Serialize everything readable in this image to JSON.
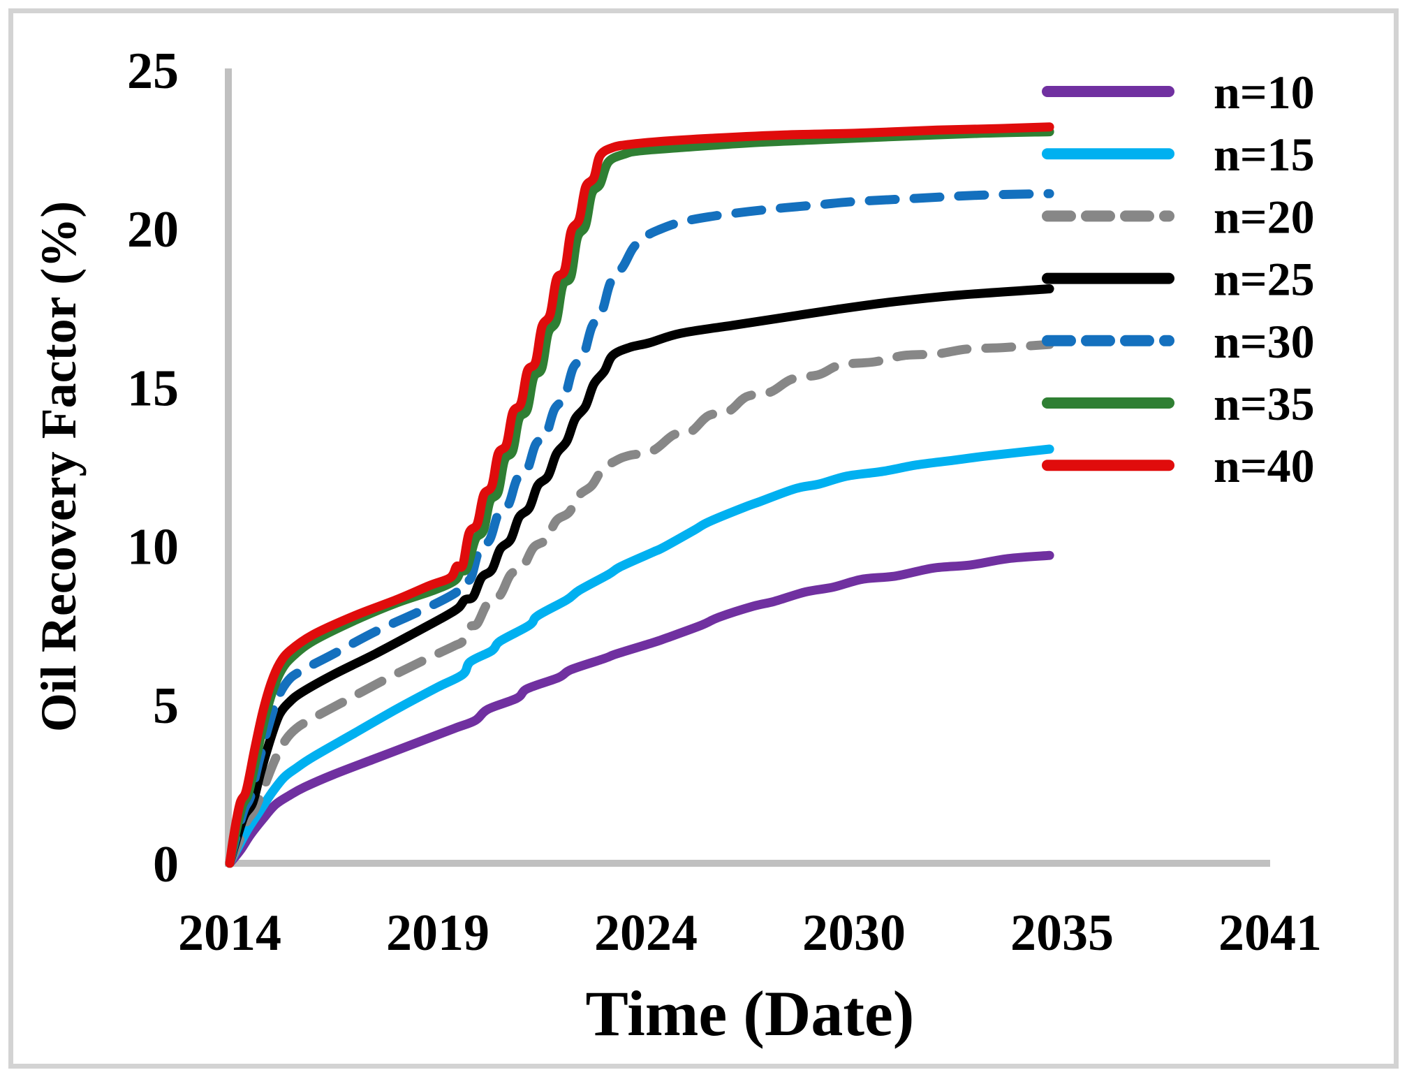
{
  "chart_data": {
    "type": "line",
    "title": "",
    "xlabel": "Time (Date)",
    "ylabel": "Oil Recovery Factor (%)",
    "x_ticks": [
      2014,
      2019,
      2024,
      2030,
      2035,
      2041
    ],
    "y_ticks": [
      0,
      5,
      10,
      15,
      20,
      25
    ],
    "xlim": [
      2014,
      2041
    ],
    "ylim": [
      0,
      25
    ],
    "grid": false,
    "legend_position": "right",
    "axis_color": "#c0c0c0",
    "series": [
      {
        "name": "n=10",
        "color": "#7030A0",
        "dash": "solid",
        "points": [
          [
            2014.0,
            0
          ],
          [
            2014.25,
            0.4
          ],
          [
            2014.5,
            0.9
          ],
          [
            2014.8,
            1.4
          ],
          [
            2015.1,
            1.85
          ],
          [
            2015.45,
            2.15
          ],
          [
            2015.8,
            2.4
          ],
          [
            2016.5,
            2.8
          ],
          [
            2017.5,
            3.3
          ],
          [
            2018.5,
            3.8
          ],
          [
            2019.4,
            4.25
          ],
          [
            2019.9,
            4.5
          ],
          [
            2020.2,
            4.85
          ],
          [
            2020.9,
            5.2
          ],
          [
            2021.15,
            5.5
          ],
          [
            2021.9,
            5.85
          ],
          [
            2022.2,
            6.1
          ],
          [
            2023.0,
            6.45
          ],
          [
            2023.3,
            6.6
          ],
          [
            2024.2,
            6.95
          ],
          [
            2024.6,
            7.1
          ],
          [
            2025.6,
            7.5
          ],
          [
            2026.1,
            7.75
          ],
          [
            2027.1,
            8.1
          ],
          [
            2027.7,
            8.25
          ],
          [
            2028.6,
            8.55
          ],
          [
            2029.4,
            8.7
          ],
          [
            2030.2,
            8.95
          ],
          [
            2031.0,
            9.05
          ],
          [
            2031.9,
            9.3
          ],
          [
            2032.8,
            9.4
          ],
          [
            2033.7,
            9.6
          ],
          [
            2034.7,
            9.7
          ]
        ]
      },
      {
        "name": "n=15",
        "color": "#00B0F0",
        "dash": "solid",
        "points": [
          [
            2014.0,
            0
          ],
          [
            2014.2,
            0.5
          ],
          [
            2014.45,
            1.1
          ],
          [
            2014.7,
            1.6
          ],
          [
            2015.0,
            2.2
          ],
          [
            2015.3,
            2.7
          ],
          [
            2015.6,
            3.0
          ],
          [
            2016.0,
            3.35
          ],
          [
            2017.0,
            4.1
          ],
          [
            2018.0,
            4.85
          ],
          [
            2019.0,
            5.55
          ],
          [
            2019.6,
            5.95
          ],
          [
            2019.78,
            6.35
          ],
          [
            2020.3,
            6.7
          ],
          [
            2020.5,
            7.0
          ],
          [
            2021.2,
            7.5
          ],
          [
            2021.4,
            7.8
          ],
          [
            2022.1,
            8.3
          ],
          [
            2022.4,
            8.6
          ],
          [
            2023.1,
            9.1
          ],
          [
            2023.4,
            9.35
          ],
          [
            2024.2,
            9.8
          ],
          [
            2024.5,
            9.95
          ],
          [
            2025.4,
            10.5
          ],
          [
            2025.8,
            10.75
          ],
          [
            2026.8,
            11.2
          ],
          [
            2027.3,
            11.4
          ],
          [
            2028.3,
            11.8
          ],
          [
            2029.0,
            11.95
          ],
          [
            2029.8,
            12.2
          ],
          [
            2030.7,
            12.35
          ],
          [
            2031.5,
            12.55
          ],
          [
            2032.4,
            12.7
          ],
          [
            2033.3,
            12.85
          ],
          [
            2034.7,
            13.05
          ]
        ]
      },
      {
        "name": "n=20",
        "color": "#878787",
        "dash": "dashed",
        "points": [
          [
            2014.0,
            0
          ],
          [
            2014.2,
            0.6
          ],
          [
            2014.4,
            1.3
          ],
          [
            2014.6,
            1.7
          ],
          [
            2014.85,
            2.5
          ],
          [
            2015.1,
            3.3
          ],
          [
            2015.35,
            3.9
          ],
          [
            2015.6,
            4.25
          ],
          [
            2015.9,
            4.5
          ],
          [
            2016.75,
            5.1
          ],
          [
            2017.75,
            5.8
          ],
          [
            2018.75,
            6.45
          ],
          [
            2019.4,
            6.85
          ],
          [
            2019.6,
            7.0
          ],
          [
            2019.78,
            7.45
          ],
          [
            2019.95,
            7.55
          ],
          [
            2020.2,
            8.2
          ],
          [
            2020.5,
            8.45
          ],
          [
            2020.75,
            9.1
          ],
          [
            2021.05,
            9.35
          ],
          [
            2021.3,
            9.95
          ],
          [
            2021.6,
            10.2
          ],
          [
            2021.85,
            10.8
          ],
          [
            2022.15,
            11.05
          ],
          [
            2022.4,
            11.6
          ],
          [
            2022.7,
            11.9
          ],
          [
            2022.95,
            12.4
          ],
          [
            2023.3,
            12.7
          ],
          [
            2023.6,
            12.85
          ],
          [
            2024.2,
            13.0
          ],
          [
            2024.8,
            13.5
          ],
          [
            2025.3,
            13.6
          ],
          [
            2025.8,
            14.1
          ],
          [
            2026.4,
            14.25
          ],
          [
            2026.9,
            14.7
          ],
          [
            2027.6,
            14.85
          ],
          [
            2028.2,
            15.25
          ],
          [
            2029.0,
            15.4
          ],
          [
            2029.6,
            15.7
          ],
          [
            2030.5,
            15.8
          ],
          [
            2031.2,
            16.0
          ],
          [
            2032.0,
            16.05
          ],
          [
            2032.7,
            16.2
          ],
          [
            2033.6,
            16.25
          ],
          [
            2034.7,
            16.35
          ]
        ]
      },
      {
        "name": "n=25",
        "color": "#000000",
        "dash": "solid",
        "points": [
          [
            2014.0,
            0
          ],
          [
            2014.15,
            0.7
          ],
          [
            2014.35,
            1.5
          ],
          [
            2014.55,
            1.9
          ],
          [
            2014.75,
            2.9
          ],
          [
            2015.0,
            4.0
          ],
          [
            2015.2,
            4.7
          ],
          [
            2015.45,
            5.1
          ],
          [
            2015.75,
            5.4
          ],
          [
            2016.5,
            5.95
          ],
          [
            2017.5,
            6.6
          ],
          [
            2018.5,
            7.3
          ],
          [
            2019.2,
            7.8
          ],
          [
            2019.5,
            8.05
          ],
          [
            2019.65,
            8.3
          ],
          [
            2019.85,
            8.4
          ],
          [
            2020.05,
            9.0
          ],
          [
            2020.3,
            9.25
          ],
          [
            2020.5,
            9.9
          ],
          [
            2020.75,
            10.2
          ],
          [
            2020.95,
            10.9
          ],
          [
            2021.2,
            11.2
          ],
          [
            2021.4,
            11.9
          ],
          [
            2021.65,
            12.2
          ],
          [
            2021.85,
            12.9
          ],
          [
            2022.1,
            13.3
          ],
          [
            2022.3,
            14.0
          ],
          [
            2022.55,
            14.4
          ],
          [
            2022.75,
            15.1
          ],
          [
            2023.0,
            15.5
          ],
          [
            2023.2,
            16.0
          ],
          [
            2023.6,
            16.25
          ],
          [
            2024.1,
            16.4
          ],
          [
            2025.0,
            16.7
          ],
          [
            2026.5,
            16.95
          ],
          [
            2028.0,
            17.2
          ],
          [
            2029.5,
            17.45
          ],
          [
            2031.0,
            17.7
          ],
          [
            2032.5,
            17.9
          ],
          [
            2034.7,
            18.1
          ]
        ]
      },
      {
        "name": "n=30",
        "color": "#1470BE",
        "dash": "dashed",
        "points": [
          [
            2014.0,
            0
          ],
          [
            2014.15,
            0.8
          ],
          [
            2014.35,
            1.7
          ],
          [
            2014.5,
            2.1
          ],
          [
            2014.7,
            3.2
          ],
          [
            2014.95,
            4.4
          ],
          [
            2015.15,
            5.2
          ],
          [
            2015.4,
            5.75
          ],
          [
            2015.7,
            6.05
          ],
          [
            2016.5,
            6.6
          ],
          [
            2017.5,
            7.3
          ],
          [
            2018.5,
            7.9
          ],
          [
            2019.2,
            8.35
          ],
          [
            2019.5,
            8.6
          ],
          [
            2019.65,
            8.9
          ],
          [
            2019.8,
            9.0
          ],
          [
            2020.0,
            9.9
          ],
          [
            2020.25,
            10.2
          ],
          [
            2020.45,
            11.0
          ],
          [
            2020.7,
            11.3
          ],
          [
            2020.9,
            12.1
          ],
          [
            2021.15,
            12.4
          ],
          [
            2021.35,
            13.2
          ],
          [
            2021.6,
            13.5
          ],
          [
            2021.8,
            14.3
          ],
          [
            2022.05,
            14.7
          ],
          [
            2022.25,
            15.6
          ],
          [
            2022.5,
            16.0
          ],
          [
            2022.7,
            16.9
          ],
          [
            2022.95,
            17.4
          ],
          [
            2023.15,
            18.3
          ],
          [
            2023.45,
            18.8
          ],
          [
            2023.7,
            19.4
          ],
          [
            2024.0,
            19.75
          ],
          [
            2024.35,
            19.95
          ],
          [
            2025.0,
            20.2
          ],
          [
            2026.0,
            20.4
          ],
          [
            2027.5,
            20.6
          ],
          [
            2029.0,
            20.75
          ],
          [
            2030.0,
            20.85
          ],
          [
            2031.5,
            20.95
          ],
          [
            2033.0,
            21.05
          ],
          [
            2034.7,
            21.1
          ]
        ]
      },
      {
        "name": "n=35",
        "color": "#2F7F33",
        "dash": "solid",
        "points": [
          [
            2014.0,
            0
          ],
          [
            2014.12,
            0.8
          ],
          [
            2014.3,
            1.8
          ],
          [
            2014.45,
            2.2
          ],
          [
            2014.65,
            3.4
          ],
          [
            2014.85,
            4.6
          ],
          [
            2015.05,
            5.5
          ],
          [
            2015.25,
            6.1
          ],
          [
            2015.5,
            6.5
          ],
          [
            2016.0,
            7.0
          ],
          [
            2017.0,
            7.65
          ],
          [
            2018.0,
            8.2
          ],
          [
            2018.9,
            8.6
          ],
          [
            2019.4,
            8.9
          ],
          [
            2019.55,
            9.2
          ],
          [
            2019.7,
            9.3
          ],
          [
            2019.9,
            10.2
          ],
          [
            2020.1,
            10.5
          ],
          [
            2020.25,
            11.4
          ],
          [
            2020.45,
            11.7
          ],
          [
            2020.6,
            12.7
          ],
          [
            2020.8,
            13.0
          ],
          [
            2020.95,
            14.0
          ],
          [
            2021.15,
            14.3
          ],
          [
            2021.3,
            15.3
          ],
          [
            2021.5,
            15.6
          ],
          [
            2021.65,
            16.7
          ],
          [
            2021.85,
            17.1
          ],
          [
            2022.0,
            18.2
          ],
          [
            2022.2,
            18.5
          ],
          [
            2022.35,
            19.7
          ],
          [
            2022.55,
            20.1
          ],
          [
            2022.7,
            21.1
          ],
          [
            2022.9,
            21.4
          ],
          [
            2023.1,
            22.1
          ],
          [
            2023.5,
            22.35
          ],
          [
            2023.85,
            22.45
          ],
          [
            2025.0,
            22.55
          ],
          [
            2027.0,
            22.7
          ],
          [
            2029.0,
            22.8
          ],
          [
            2031.0,
            22.9
          ],
          [
            2033.0,
            23.0
          ],
          [
            2034.7,
            23.05
          ]
        ]
      },
      {
        "name": "n=40",
        "color": "#E00C0C",
        "dash": "solid",
        "points": [
          [
            2014.0,
            0
          ],
          [
            2014.1,
            0.9
          ],
          [
            2014.25,
            1.9
          ],
          [
            2014.4,
            2.3
          ],
          [
            2014.6,
            3.6
          ],
          [
            2014.8,
            4.8
          ],
          [
            2015.0,
            5.7
          ],
          [
            2015.2,
            6.3
          ],
          [
            2015.45,
            6.7
          ],
          [
            2016.0,
            7.2
          ],
          [
            2017.0,
            7.8
          ],
          [
            2018.0,
            8.3
          ],
          [
            2018.8,
            8.75
          ],
          [
            2019.3,
            9.0
          ],
          [
            2019.45,
            9.35
          ],
          [
            2019.6,
            9.4
          ],
          [
            2019.75,
            10.4
          ],
          [
            2019.95,
            10.7
          ],
          [
            2020.1,
            11.6
          ],
          [
            2020.3,
            11.9
          ],
          [
            2020.45,
            12.9
          ],
          [
            2020.65,
            13.2
          ],
          [
            2020.8,
            14.2
          ],
          [
            2021.0,
            14.5
          ],
          [
            2021.15,
            15.5
          ],
          [
            2021.35,
            15.8
          ],
          [
            2021.5,
            16.9
          ],
          [
            2021.7,
            17.3
          ],
          [
            2021.85,
            18.4
          ],
          [
            2022.05,
            18.7
          ],
          [
            2022.2,
            19.9
          ],
          [
            2022.4,
            20.3
          ],
          [
            2022.55,
            21.3
          ],
          [
            2022.75,
            21.6
          ],
          [
            2022.9,
            22.3
          ],
          [
            2023.2,
            22.55
          ],
          [
            2023.6,
            22.65
          ],
          [
            2024.5,
            22.75
          ],
          [
            2026.0,
            22.85
          ],
          [
            2028.0,
            22.95
          ],
          [
            2030.0,
            23.0
          ],
          [
            2032.0,
            23.1
          ],
          [
            2033.5,
            23.15
          ],
          [
            2034.7,
            23.2
          ]
        ]
      }
    ]
  }
}
